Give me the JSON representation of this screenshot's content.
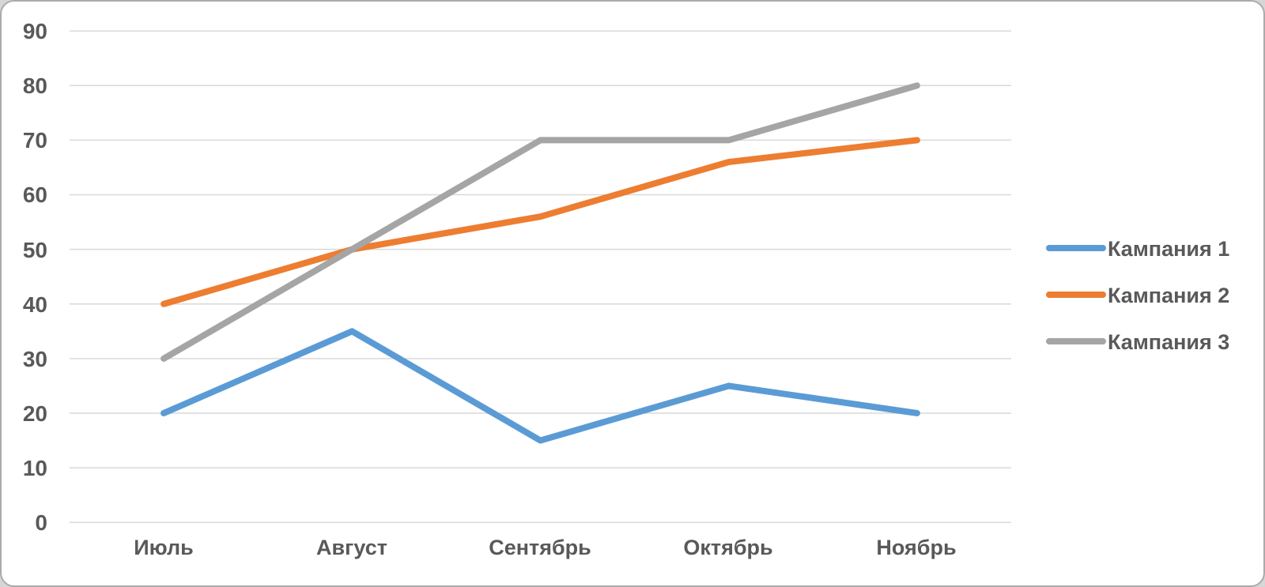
{
  "chart_data": {
    "type": "line",
    "title": "",
    "xlabel": "",
    "ylabel": "",
    "categories": [
      "Июль",
      "Август",
      "Сентябрь",
      "Октябрь",
      "Ноябрь"
    ],
    "series": [
      {
        "name": "Кампания 1",
        "color": "#5B9BD5",
        "values": [
          20,
          35,
          15,
          25,
          20
        ]
      },
      {
        "name": "Кампания 2",
        "color": "#ED7D31",
        "values": [
          40,
          50,
          56,
          66,
          70
        ]
      },
      {
        "name": "Кампания 3",
        "color": "#A5A5A5",
        "values": [
          30,
          50,
          70,
          70,
          80
        ]
      }
    ],
    "yticks": [
      0,
      10,
      20,
      30,
      40,
      50,
      60,
      70,
      80,
      90
    ],
    "ylim": [
      0,
      90
    ],
    "grid": "horizontal",
    "legend_position": "right",
    "gridline_color": "#D9D9D9",
    "text_color": "#595959",
    "line_width": 8,
    "background_color": "#FFFFFF",
    "border_color": "#ABABAB"
  }
}
